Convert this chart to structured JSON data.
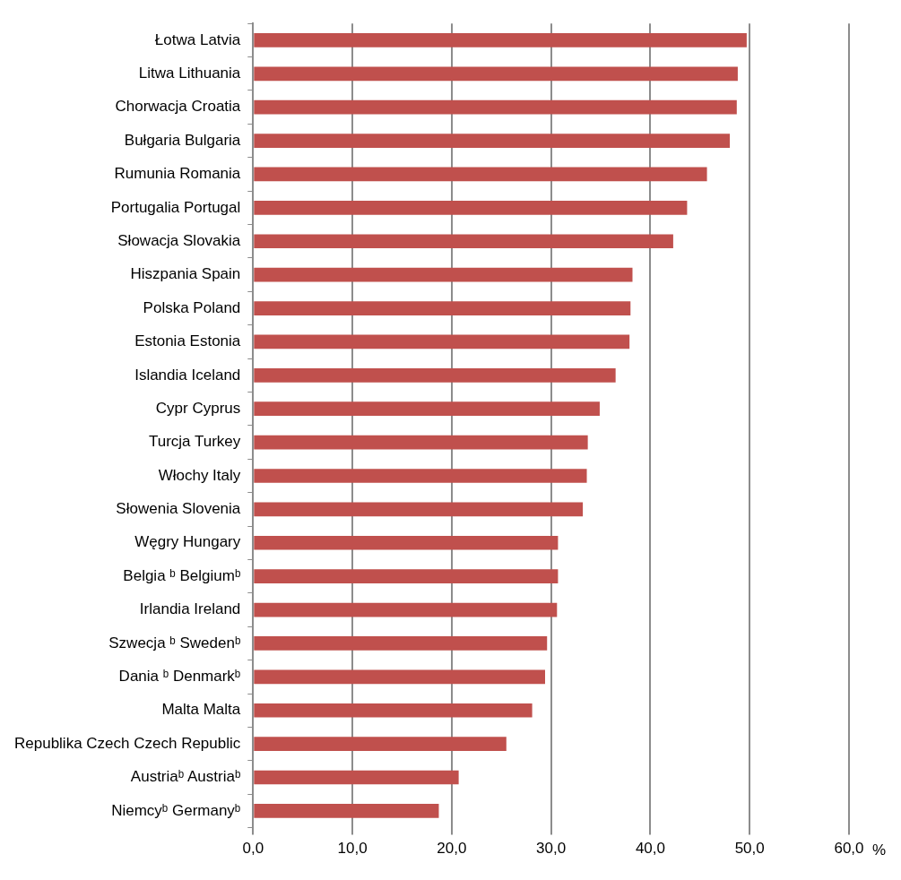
{
  "chart_data": {
    "type": "bar",
    "orientation": "horizontal",
    "xlabel": "%",
    "categories": [
      "Łotwa Latvia",
      "Litwa Lithuania",
      "Chorwacja Croatia",
      "Bułgaria Bulgaria",
      "Rumunia Romania",
      "Portugalia Portugal",
      "Słowacja Slovakia",
      "Hiszpania Spain",
      "Polska Poland",
      "Estonia Estonia",
      "Islandia Iceland",
      "Cypr Cyprus",
      "Turcja Turkey",
      "Włochy Italy",
      "Słowenia Slovenia",
      "Węgry Hungary",
      "Belgia ᵇ Belgiumᵇ",
      "Irlandia Ireland",
      "Szwecja ᵇ Swedenᵇ",
      "Dania ᵇ Denmarkᵇ",
      "Malta Malta",
      "Republika Czech Czech Republic",
      "Austriaᵇ Austriaᵇ",
      "Niemcyᵇ Germanyᵇ"
    ],
    "values": [
      49.7,
      48.8,
      48.7,
      48.0,
      45.7,
      43.7,
      42.3,
      38.2,
      38.0,
      37.9,
      36.5,
      34.9,
      33.7,
      33.6,
      33.2,
      30.7,
      30.7,
      30.6,
      29.6,
      29.4,
      28.1,
      25.5,
      20.7,
      18.7
    ],
    "color": "#c0504d",
    "xlim": [
      0,
      60
    ],
    "xticks": [
      {
        "value": 0,
        "label": "0,0"
      },
      {
        "value": 10,
        "label": "10,0"
      },
      {
        "value": 20,
        "label": "20,0"
      },
      {
        "value": 30,
        "label": "30,0"
      },
      {
        "value": 40,
        "label": "40,0"
      },
      {
        "value": 50,
        "label": "50,0"
      },
      {
        "value": 60,
        "label": "60,0"
      }
    ],
    "grid": "x",
    "legend": false
  }
}
